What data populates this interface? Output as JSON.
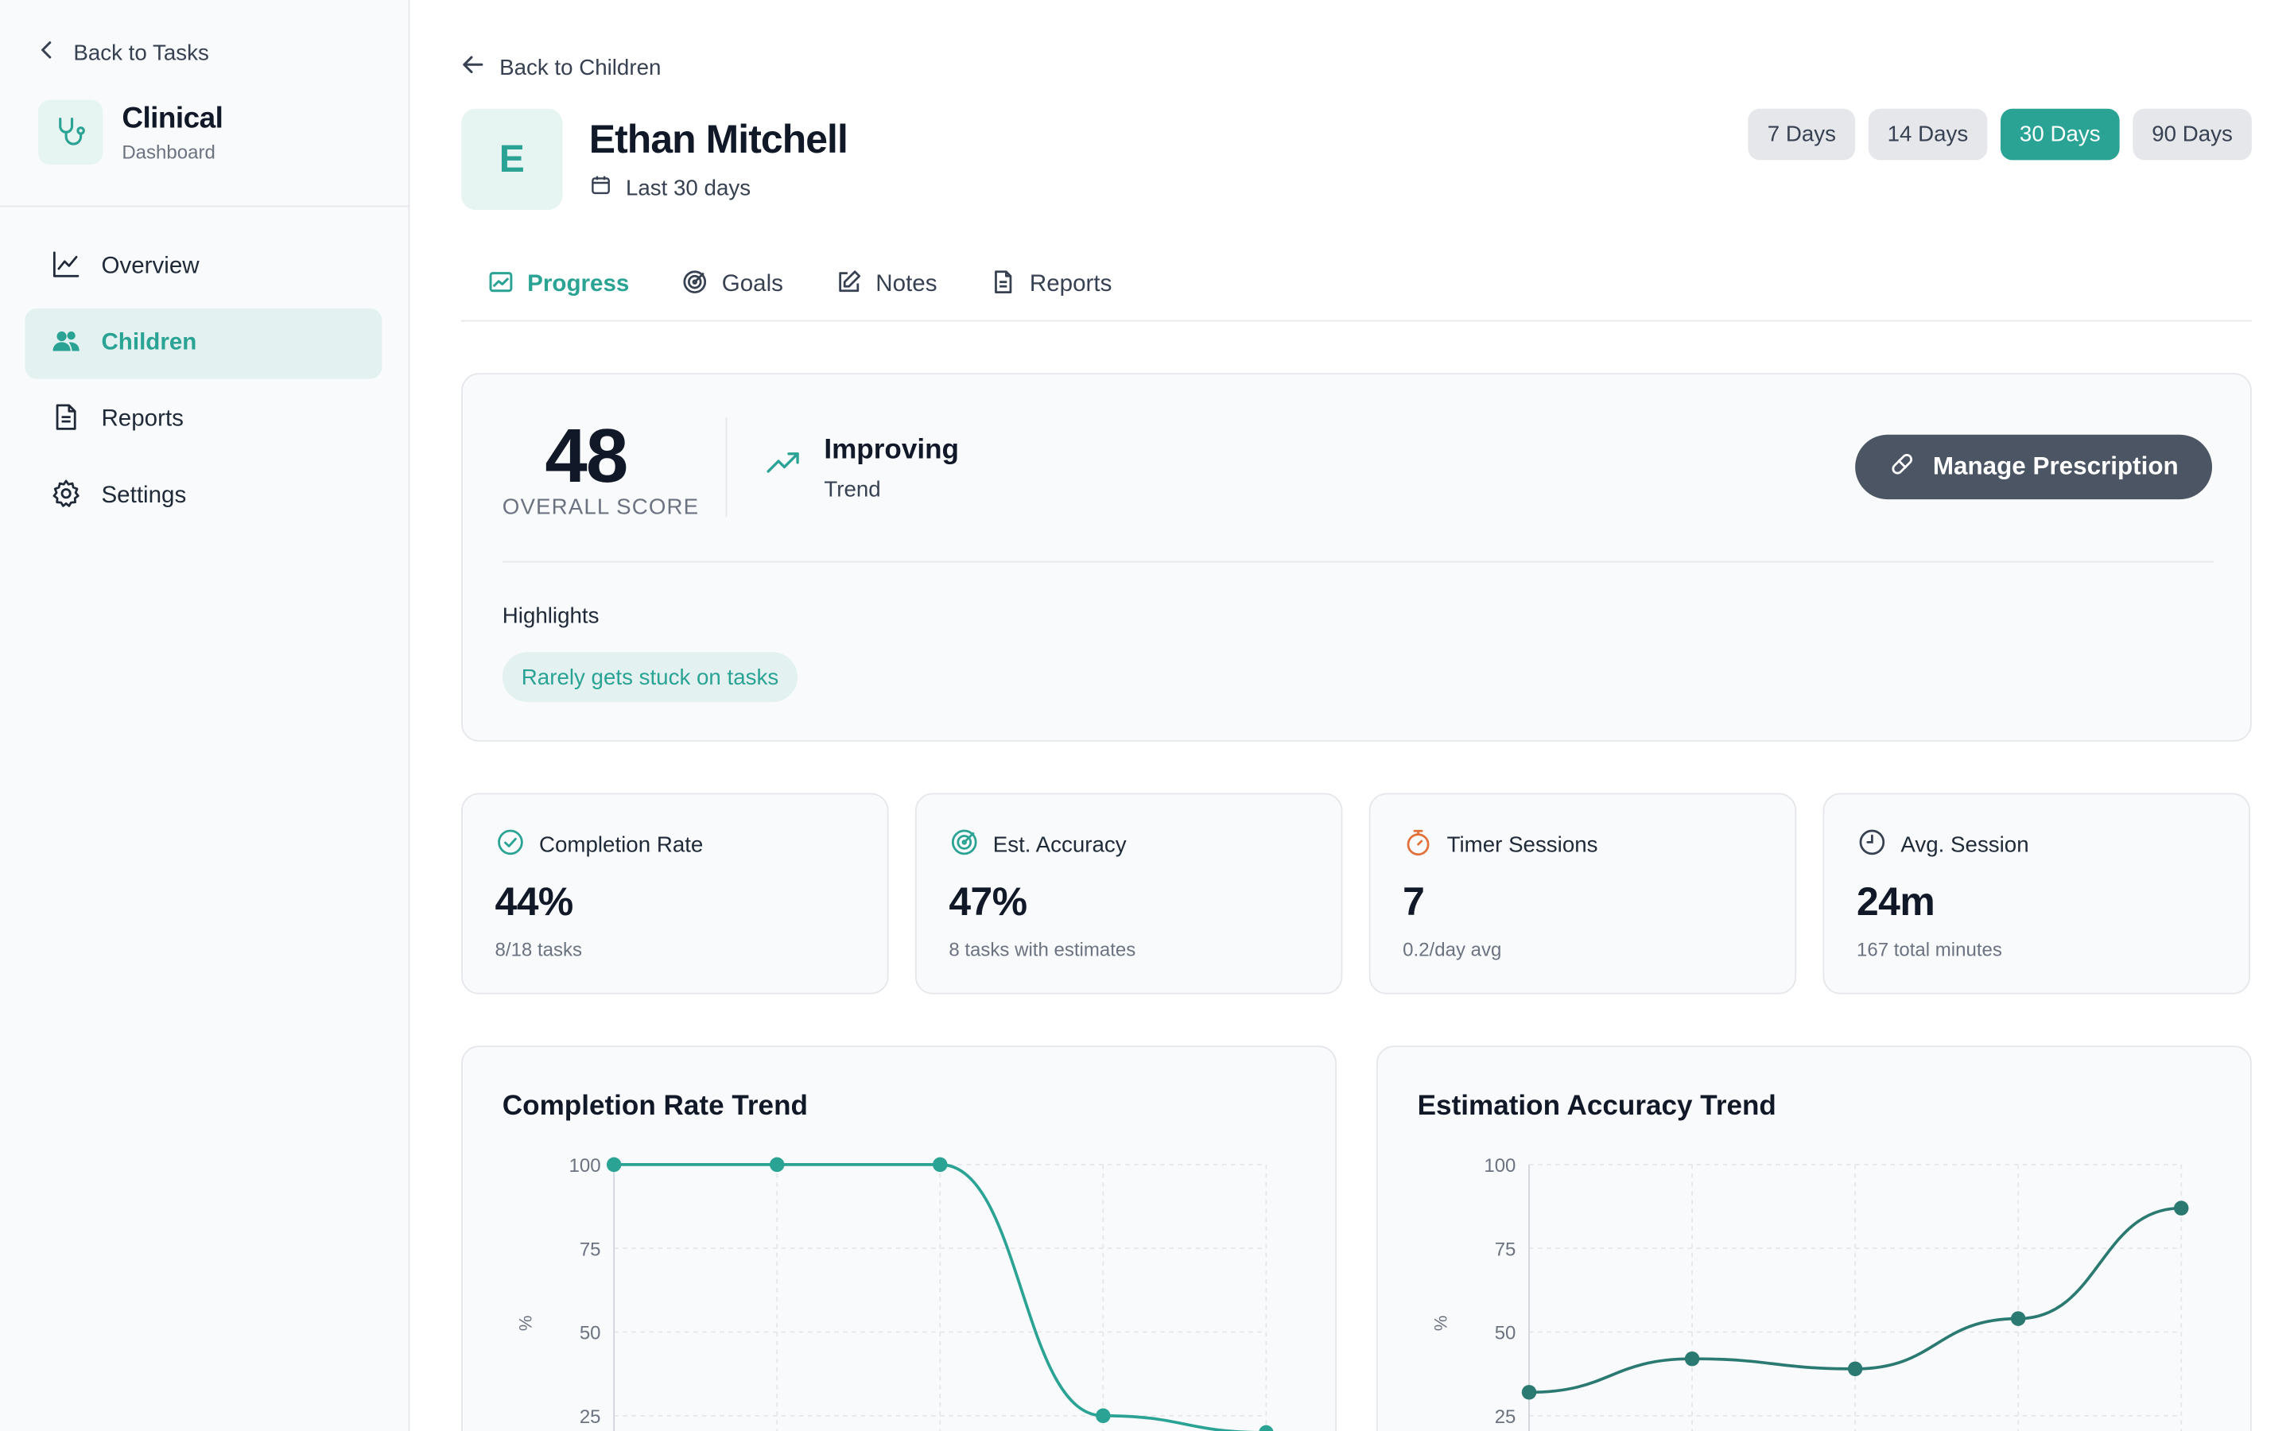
{
  "sidebar": {
    "back_label": "Back to Tasks",
    "brand_title": "Clinical",
    "brand_subtitle": "Dashboard",
    "brand_icon": "stethoscope-icon",
    "items": [
      {
        "label": "Overview",
        "icon": "line-chart-icon",
        "active": false
      },
      {
        "label": "Children",
        "icon": "users-icon",
        "active": true
      },
      {
        "label": "Reports",
        "icon": "file-text-icon",
        "active": false
      },
      {
        "label": "Settings",
        "icon": "gear-icon",
        "active": false
      }
    ]
  },
  "header": {
    "back_label": "Back to Children",
    "avatar_initial": "E",
    "child_name": "Ethan Mitchell",
    "range_label": "Last 30 days",
    "ranges": [
      {
        "label": "7 Days",
        "active": false
      },
      {
        "label": "14 Days",
        "active": false
      },
      {
        "label": "30 Days",
        "active": true
      },
      {
        "label": "90 Days",
        "active": false
      }
    ]
  },
  "tabs": [
    {
      "label": "Progress",
      "icon": "image-chart-icon",
      "active": true
    },
    {
      "label": "Goals",
      "icon": "target-icon",
      "active": false
    },
    {
      "label": "Notes",
      "icon": "edit-icon",
      "active": false
    },
    {
      "label": "Reports",
      "icon": "file-text-icon",
      "active": false
    }
  ],
  "summary": {
    "score": "48",
    "score_label": "OVERALL SCORE",
    "trend_title": "Improving",
    "trend_sub": "Trend",
    "prescription_button": "Manage Prescription",
    "highlights_title": "Highlights",
    "highlights": [
      "Rarely gets stuck on tasks"
    ]
  },
  "stats": [
    {
      "label": "Completion Rate",
      "icon": "check-circle-icon",
      "icon_color": "#2aa394",
      "value": "44%",
      "sub": "8/18 tasks"
    },
    {
      "label": "Est. Accuracy",
      "icon": "target-icon",
      "icon_color": "#2aa394",
      "value": "47%",
      "sub": "8 tasks with estimates"
    },
    {
      "label": "Timer Sessions",
      "icon": "stopwatch-icon",
      "icon_color": "#e2703a",
      "value": "7",
      "sub": "0.2/day avg"
    },
    {
      "label": "Avg. Session",
      "icon": "clock-icon",
      "icon_color": "#374151",
      "value": "24m",
      "sub": "167 total minutes"
    }
  ],
  "colors": {
    "accent": "#2aa394",
    "accent_dark": "#2b7a72",
    "dark_button": "#4b5563"
  },
  "chart_data": [
    {
      "type": "line",
      "title": "Completion Rate Trend",
      "ylabel": "%",
      "ylim": [
        0,
        100
      ],
      "yticks": [
        100,
        75,
        50,
        25
      ],
      "values": [
        100,
        100,
        100,
        25,
        20
      ],
      "color": "#2aa394",
      "grid": true
    },
    {
      "type": "line",
      "title": "Estimation Accuracy Trend",
      "ylabel": "%",
      "ylim": [
        0,
        100
      ],
      "yticks": [
        100,
        75,
        50,
        25
      ],
      "values": [
        32,
        42,
        39,
        54,
        87
      ],
      "color": "#2b7a72",
      "grid": true
    }
  ]
}
